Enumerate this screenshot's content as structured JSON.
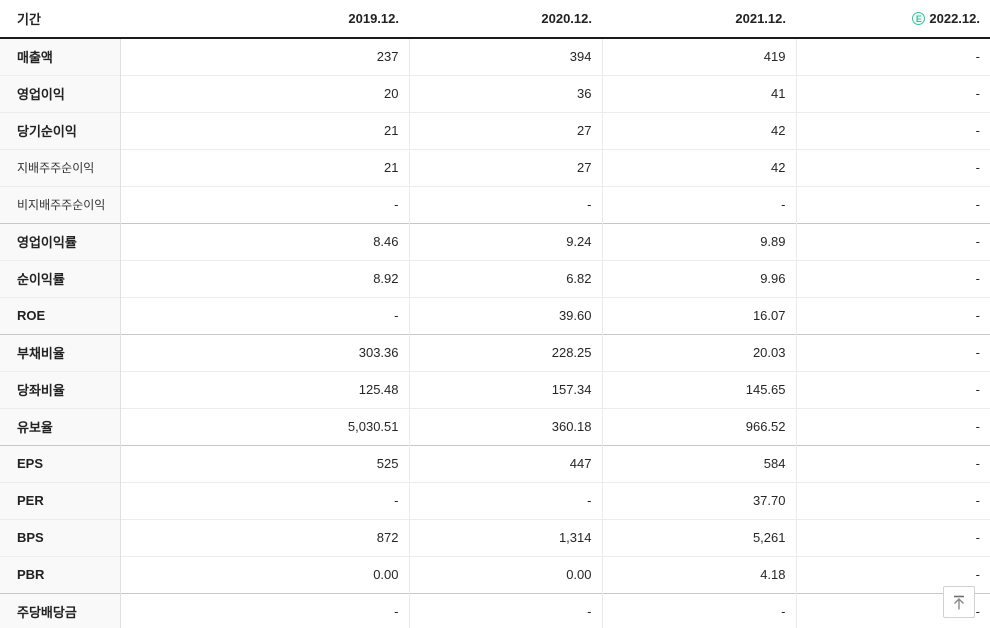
{
  "table": {
    "period_header": "기간",
    "columns": [
      {
        "label": "2019.12."
      },
      {
        "label": "2020.12."
      },
      {
        "label": "2021.12."
      },
      {
        "label": "2022.12.",
        "badge": "E"
      }
    ],
    "rows": [
      {
        "label": "매출액",
        "values": [
          "237",
          "394",
          "419",
          "-"
        ]
      },
      {
        "label": "영업이익",
        "values": [
          "20",
          "36",
          "41",
          "-"
        ]
      },
      {
        "label": "당기순이익",
        "values": [
          "21",
          "27",
          "42",
          "-"
        ]
      },
      {
        "label": "지배주주순이익",
        "values": [
          "21",
          "27",
          "42",
          "-"
        ],
        "sub": true
      },
      {
        "label": "비지배주주순이익",
        "values": [
          "-",
          "-",
          "-",
          "-"
        ],
        "sub": true
      },
      {
        "label": "영업이익률",
        "values": [
          "8.46",
          "9.24",
          "9.89",
          "-"
        ],
        "group_start": true
      },
      {
        "label": "순이익률",
        "values": [
          "8.92",
          "6.82",
          "9.96",
          "-"
        ]
      },
      {
        "label": "ROE",
        "values": [
          "-",
          "39.60",
          "16.07",
          "-"
        ]
      },
      {
        "label": "부채비율",
        "values": [
          "303.36",
          "228.25",
          "20.03",
          "-"
        ],
        "group_start": true
      },
      {
        "label": "당좌비율",
        "values": [
          "125.48",
          "157.34",
          "145.65",
          "-"
        ]
      },
      {
        "label": "유보율",
        "values": [
          "5,030.51",
          "360.18",
          "966.52",
          "-"
        ]
      },
      {
        "label": "EPS",
        "values": [
          "525",
          "447",
          "584",
          "-"
        ],
        "group_start": true
      },
      {
        "label": "PER",
        "values": [
          "-",
          "-",
          "37.70",
          "-"
        ]
      },
      {
        "label": "BPS",
        "values": [
          "872",
          "1,314",
          "5,261",
          "-"
        ]
      },
      {
        "label": "PBR",
        "values": [
          "0.00",
          "0.00",
          "4.18",
          "-"
        ]
      },
      {
        "label": "주당배당금",
        "values": [
          "-",
          "-",
          "-",
          "-"
        ],
        "group_start": true
      }
    ]
  },
  "colors": {
    "estimate_badge": "#38c2a0",
    "header_border": "#1b1b1b",
    "row_border": "#ececec",
    "group_border": "#c7c7c7",
    "label_bg": "#f9f9f9",
    "text": "#222222"
  },
  "scroll_top_button": {
    "icon": "arrow-up-to-top"
  }
}
